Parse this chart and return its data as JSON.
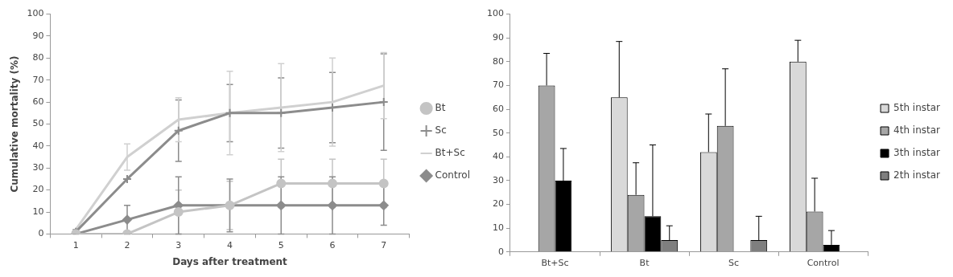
{
  "chart_data": [
    {
      "type": "line",
      "xlabel": "Days after treatment",
      "ylabel": "Cumulative mortality (%)",
      "categories": [
        "1",
        "2",
        "3",
        "4",
        "5",
        "6",
        "7"
      ],
      "ylim": [
        0,
        100
      ],
      "yticks": [
        0,
        10,
        20,
        30,
        40,
        50,
        60,
        70,
        80,
        90,
        100
      ],
      "grid": false,
      "legend": "right",
      "series": [
        {
          "name": "Bt",
          "color": "#c4c4c4",
          "marker": "circle",
          "values": [
            0,
            0,
            10,
            13,
            23,
            23,
            23
          ],
          "errors": [
            null,
            null,
            10,
            11,
            11,
            11,
            11
          ]
        },
        {
          "name": "Sc",
          "color": "#8c8c8c",
          "marker": "cross",
          "values": [
            1,
            25,
            47,
            55,
            55,
            57.5,
            60
          ],
          "errors": [
            1,
            null,
            14,
            13,
            16,
            16,
            22
          ]
        },
        {
          "name": "Bt+Sc",
          "color": "#d0d0d0",
          "marker": "none",
          "values": [
            2,
            35,
            52,
            55,
            57.5,
            60,
            67.5
          ],
          "errors": [
            null,
            6,
            10,
            19,
            20,
            20,
            15
          ]
        },
        {
          "name": "Control",
          "color": "#8c8c8c",
          "marker": "diamond",
          "values": [
            0,
            6.5,
            13,
            13,
            13,
            13,
            13
          ],
          "errors": [
            null,
            6.5,
            13,
            12,
            13,
            13,
            9
          ]
        }
      ]
    },
    {
      "type": "bar",
      "categories": [
        "Bt+Sc",
        "Bt",
        "Sc",
        "Control"
      ],
      "ylim": [
        0,
        100
      ],
      "yticks": [
        0,
        10,
        20,
        30,
        40,
        50,
        60,
        70,
        80,
        90,
        100
      ],
      "grid": false,
      "legend": "right",
      "series": [
        {
          "name": "5th instar",
          "color": "#d9d9d9",
          "values": [
            null,
            65,
            42,
            80
          ],
          "errors": [
            null,
            [
              65,
              88.5
            ],
            [
              42,
              58
            ],
            [
              80,
              89
            ]
          ]
        },
        {
          "name": "4th instar",
          "color": "#a6a6a6",
          "values": [
            70,
            24,
            53,
            17
          ],
          "errors": [
            [
              70,
              83.5
            ],
            [
              24,
              37.5
            ],
            [
              53,
              77
            ],
            [
              17,
              31
            ]
          ]
        },
        {
          "name": "3th instar",
          "color": "#000000",
          "values": [
            30,
            15,
            null,
            3
          ],
          "errors": [
            [
              30,
              43.5
            ],
            [
              15,
              45
            ],
            null,
            [
              3,
              9
            ]
          ]
        },
        {
          "name": "2th instar",
          "color": "#7f7f7f",
          "values": [
            null,
            5,
            5,
            null
          ],
          "errors": [
            null,
            [
              5,
              11
            ],
            [
              5,
              15
            ],
            null
          ]
        }
      ]
    }
  ]
}
